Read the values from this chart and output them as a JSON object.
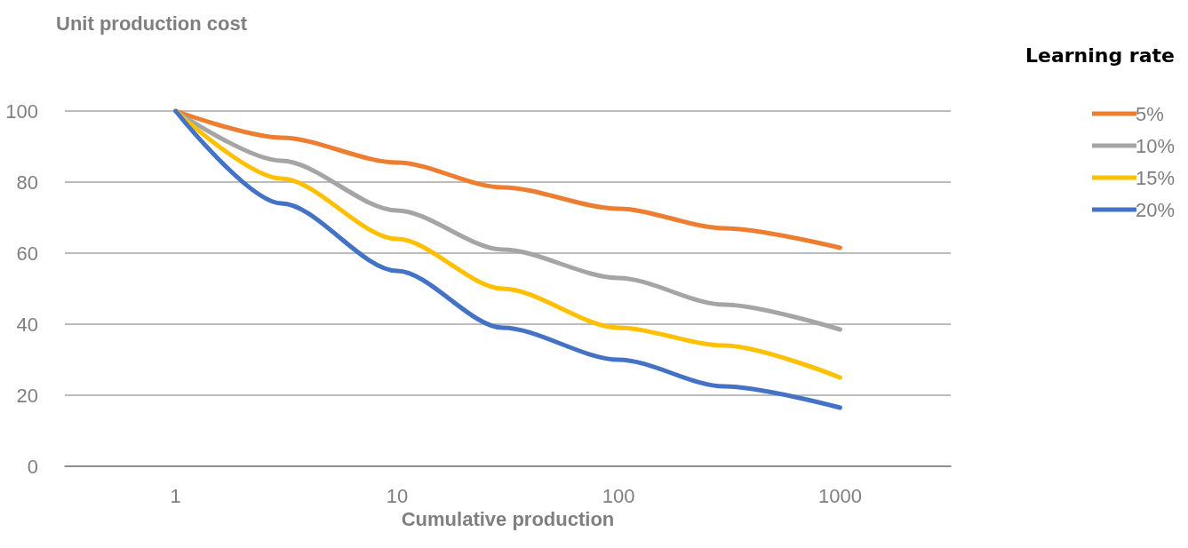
{
  "chart_data": {
    "type": "line",
    "ylabel": "Unit production cost",
    "xlabel": "Cumulative production",
    "legend_title": "Learning rate",
    "x": [
      1,
      3,
      10,
      30,
      100,
      300,
      1000
    ],
    "series": [
      {
        "name": "5%",
        "color": "#ed7d31",
        "values": [
          100,
          92.5,
          85.5,
          78.5,
          72.5,
          67,
          61.5
        ]
      },
      {
        "name": "10%",
        "color": "#a5a5a5",
        "values": [
          100,
          86,
          72,
          61,
          53,
          45.5,
          38.5
        ]
      },
      {
        "name": "15%",
        "color": "#ffc000",
        "values": [
          100,
          81,
          64,
          50,
          39,
          34,
          25
        ]
      },
      {
        "name": "20%",
        "color": "#4472c4",
        "values": [
          100,
          74,
          55,
          39,
          30,
          22.5,
          16.5
        ]
      }
    ],
    "log": "x",
    "xlim": [
      0.316,
      3162
    ],
    "xticks": [
      1,
      10,
      100,
      1000
    ],
    "ylim": [
      0,
      100
    ],
    "yticks": [
      0,
      20,
      40,
      60,
      80,
      100
    ],
    "grid": "y",
    "legend": "right",
    "marker": "none",
    "line_style": "solid"
  }
}
